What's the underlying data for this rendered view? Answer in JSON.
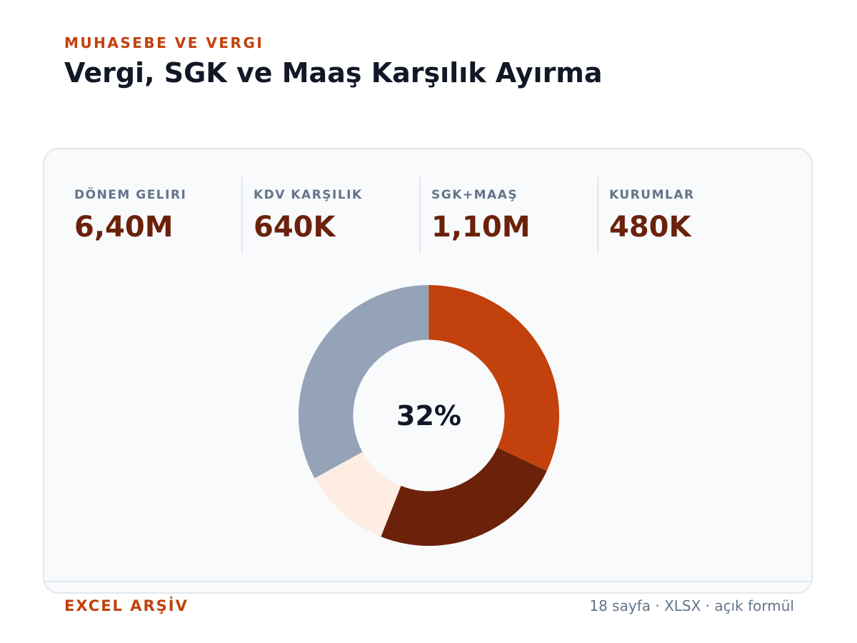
{
  "header": {
    "eyebrow": "MUHASEBE VE VERGI",
    "title": "Vergi, SGK ve Maaş Karşılık Ayırma"
  },
  "kpis": [
    {
      "label": "DÖNEM GELIRI",
      "value": "6,40M"
    },
    {
      "label": "KDV KARŞILIK",
      "value": "640K"
    },
    {
      "label": "SGK+MAAŞ",
      "value": "1,10M"
    },
    {
      "label": "KURUMLAR",
      "value": "480K"
    }
  ],
  "chart_data": {
    "type": "pie",
    "center_label": "32%",
    "categories": [
      "",
      "",
      "",
      ""
    ],
    "values": [
      32,
      24,
      11,
      33
    ],
    "colors": [
      "#c2410c",
      "#6b210a",
      "#ffede4",
      "#94a3b8"
    ]
  },
  "footer": {
    "left": "EXCEL ARŞİV",
    "right": "18 sayfa · XLSX · açık formül"
  }
}
